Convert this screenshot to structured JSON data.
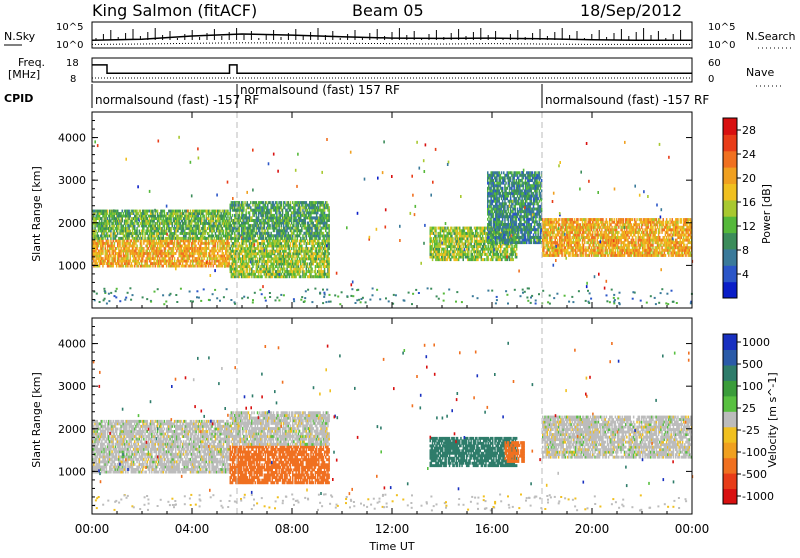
{
  "header": {
    "station": "King Salmon (fitACF)",
    "beam": "Beam 05",
    "date": "18/Sep/2012"
  },
  "noise_panel": {
    "left_label": "N.Sky",
    "right_label": "N.Search",
    "left_ticks": [
      "10^5",
      "10^0"
    ],
    "right_ticks": [
      "10^5",
      "10^0"
    ]
  },
  "freq_panel": {
    "left_label_1": "Freq.",
    "left_label_2": "[MHz]",
    "left_ticks": [
      "18",
      "8"
    ],
    "right_label": "Nave",
    "right_ticks": [
      "60",
      "0"
    ]
  },
  "cpid_panel": {
    "label": "CPID",
    "segments": [
      {
        "text": "normalsound (fast) -157 RF",
        "start_hour": 0.0,
        "end_hour": 5.8
      },
      {
        "text": "normalsound (fast) 157 RF",
        "start_hour": 5.8,
        "end_hour": 18.0
      },
      {
        "text": "normalsound (fast) -157 RF",
        "start_hour": 18.0,
        "end_hour": 24.0
      }
    ]
  },
  "x_axis": {
    "title": "Time UT",
    "ticks": [
      "00:00",
      "04:00",
      "08:00",
      "12:00",
      "16:00",
      "20:00",
      "00:00"
    ]
  },
  "power_panel": {
    "ylabel": "Slant Range [km]",
    "yticks": [
      "1000",
      "2000",
      "3000",
      "4000"
    ],
    "colorbar_title": "Power [dB]",
    "colorbar_ticks": [
      "4",
      "8",
      "12",
      "16",
      "20",
      "24",
      "28"
    ],
    "colors": [
      "#0a1ec8",
      "#2b56c8",
      "#3a7a9a",
      "#3b8c5a",
      "#55b83a",
      "#a8c830",
      "#f0c020",
      "#f0a020",
      "#f07020",
      "#e83c18",
      "#d81010"
    ]
  },
  "velocity_panel": {
    "ylabel": "Slant Range [km]",
    "yticks": [
      "1000",
      "2000",
      "3000",
      "4000"
    ],
    "colorbar_title": "Velocity [m s^-1]",
    "colorbar_ticks": [
      "1000",
      "500",
      "100",
      "25",
      "-25",
      "-100",
      "-500",
      "-1000"
    ],
    "colors": [
      "#1830c0",
      "#2a5aa8",
      "#2e7c6a",
      "#3a9c3a",
      "#58c040",
      "#bcbcbc",
      "#f0c020",
      "#f0a020",
      "#f07020",
      "#e83c18",
      "#d81010"
    ]
  },
  "chart_data": [
    {
      "type": "line",
      "title": "N.Sky / N.Search",
      "x": [
        0,
        2,
        4,
        6,
        8,
        10,
        12,
        14,
        16,
        18,
        20,
        22,
        24
      ],
      "series": [
        {
          "name": "N.Sky",
          "values": [
            30,
            50,
            200,
            500,
            300,
            150,
            80,
            70,
            80,
            60,
            40,
            30,
            30
          ]
        },
        {
          "name": "N.Search",
          "values": [
            5,
            6,
            8,
            10,
            9,
            8,
            7,
            6,
            7,
            6,
            5,
            5,
            5
          ]
        }
      ]
    },
    {
      "type": "line",
      "title": "Freq. / Nave",
      "x": [
        0,
        0.6,
        0.6,
        5.5,
        5.5,
        5.8,
        5.8,
        24
      ],
      "series": [
        {
          "name": "Freq. [MHz]",
          "values": [
            15.7,
            15.7,
            10.5,
            10.5,
            15.7,
            15.7,
            10.5,
            10.5
          ]
        }
      ]
    },
    {
      "type": "heatmap",
      "title": "Power [dB]",
      "xlabel": "Time UT",
      "ylabel": "Slant Range [km]",
      "xlim": [
        0,
        24
      ],
      "ylim": [
        0,
        4600
      ],
      "patches": [
        {
          "t0": 0.0,
          "t1": 5.5,
          "r0": 950,
          "r1": 1600,
          "power_db": 20
        },
        {
          "t0": 0.0,
          "t1": 5.5,
          "r0": 1600,
          "r1": 2300,
          "power_db": 12
        },
        {
          "t0": 5.5,
          "t1": 9.5,
          "r0": 700,
          "r1": 1600,
          "power_db": 14
        },
        {
          "t0": 5.5,
          "t1": 9.5,
          "r0": 1600,
          "r1": 2500,
          "power_db": 10
        },
        {
          "t0": 13.5,
          "t1": 17.0,
          "r0": 1100,
          "r1": 1900,
          "power_db": 14
        },
        {
          "t0": 15.8,
          "t1": 18.0,
          "r0": 1500,
          "r1": 3200,
          "power_db": 8
        },
        {
          "t0": 18.0,
          "t1": 24.0,
          "r0": 1200,
          "r1": 2100,
          "power_db": 20
        }
      ]
    },
    {
      "type": "heatmap",
      "title": "Velocity [m s^-1]",
      "xlabel": "Time UT",
      "ylabel": "Slant Range [km]",
      "xlim": [
        0,
        24
      ],
      "ylim": [
        0,
        4600
      ],
      "patches": [
        {
          "t0": 0.0,
          "t1": 5.5,
          "r0": 950,
          "r1": 2200,
          "velocity": 0
        },
        {
          "t0": 5.5,
          "t1": 9.5,
          "r0": 700,
          "r1": 1600,
          "velocity": -300
        },
        {
          "t0": 5.5,
          "t1": 9.5,
          "r0": 1600,
          "r1": 2400,
          "velocity": 0
        },
        {
          "t0": 13.5,
          "t1": 17.0,
          "r0": 1100,
          "r1": 1800,
          "velocity": 150
        },
        {
          "t0": 16.5,
          "t1": 17.3,
          "r0": 1200,
          "r1": 1700,
          "velocity": -200
        },
        {
          "t0": 18.0,
          "t1": 24.0,
          "r0": 1300,
          "r1": 2300,
          "velocity": 0
        }
      ]
    }
  ]
}
